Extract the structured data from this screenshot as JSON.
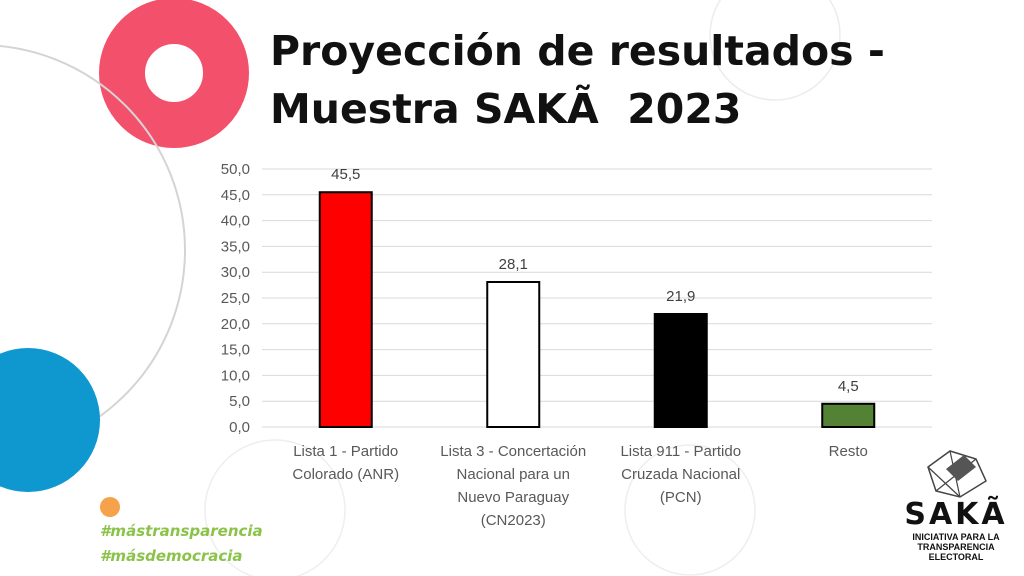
{
  "title": {
    "line1": "Proyección de resultados -",
    "line2": "Muestra SAKÃ  2023"
  },
  "hashtags": [
    "#mástransparencia",
    "#másdemocracia"
  ],
  "logo": {
    "name": "SAKÃ",
    "subtitle_line1": "INICIATIVA PARA LA",
    "subtitle_line2": "TRANSPARENCIA",
    "subtitle_line3": "ELECTORAL"
  },
  "colors": {
    "pink": "#f2506b",
    "blue": "#0f97cf",
    "orange": "#f5a24a",
    "green_text": "#8bc34a"
  },
  "chart_data": {
    "type": "bar",
    "title": "",
    "xlabel": "",
    "ylabel": "",
    "ylim": [
      0,
      50
    ],
    "yticks": [
      "0,0",
      "5,0",
      "10,0",
      "15,0",
      "20,0",
      "25,0",
      "30,0",
      "35,0",
      "40,0",
      "45,0",
      "50,0"
    ],
    "grid": true,
    "categories": [
      [
        "Lista 1 - Partido",
        "Colorado (ANR)"
      ],
      [
        "Lista 3 - Concertación",
        "Nacional para un",
        "Nuevo Paraguay",
        "(CN2023)"
      ],
      [
        "Lista 911 - Partido",
        "Cruzada Nacional",
        "(PCN)"
      ],
      [
        "Resto"
      ]
    ],
    "values": [
      45.5,
      28.1,
      21.9,
      4.5
    ],
    "data_labels": [
      "45,5",
      "28,1",
      "21,9",
      "4,5"
    ],
    "bar_colors": [
      "#ff0000",
      "#ffffff",
      "#000000",
      "#548235"
    ]
  }
}
